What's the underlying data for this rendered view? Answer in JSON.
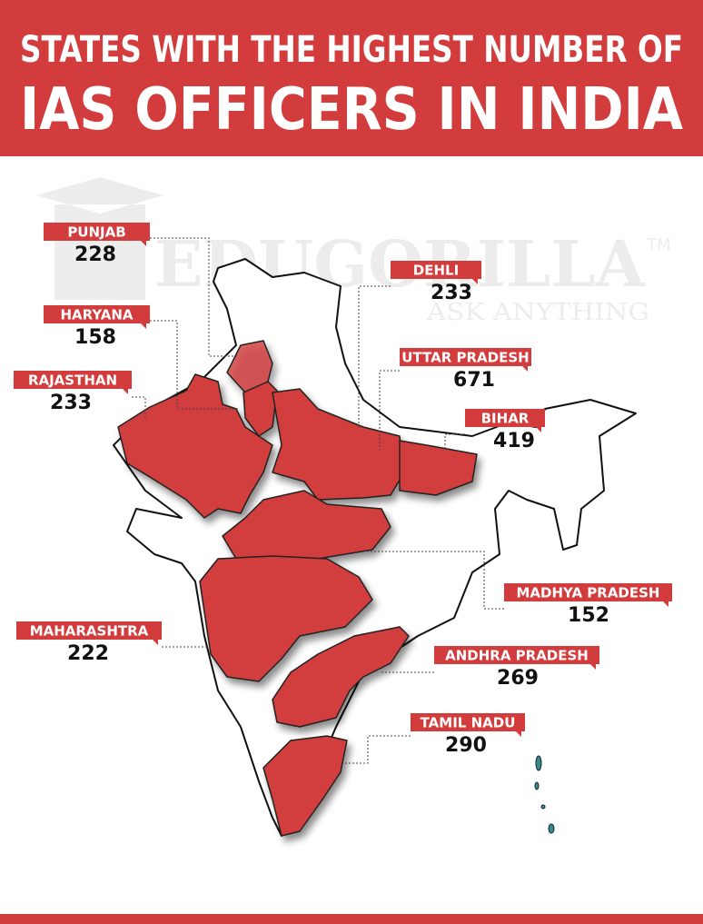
{
  "header": {
    "title": [
      "STATES WITH THE HIGHEST NUMBER OF",
      "IAS OFFICERS IN INDIA"
    ]
  },
  "watermark": {
    "brand": "EDUGORILLA",
    "mark": "TM",
    "tagline": "ASK ANYTHING"
  },
  "states": [
    {
      "name": "PUNJAB",
      "officers": 228
    },
    {
      "name": "HARYANA",
      "officers": 158
    },
    {
      "name": "RAJASTHAN",
      "officers": 233
    },
    {
      "name": "DEHLI",
      "officers": 233
    },
    {
      "name": "UTTAR PRADESH",
      "officers": 671
    },
    {
      "name": "BIHAR",
      "officers": 419
    },
    {
      "name": "MADHYA PRADESH",
      "officers": 152
    },
    {
      "name": "MAHARASHTRA",
      "officers": 222
    },
    {
      "name": "ANDHRA PRADESH",
      "officers": 269
    },
    {
      "name": "TAMIL NADU",
      "officers": 290
    }
  ]
}
